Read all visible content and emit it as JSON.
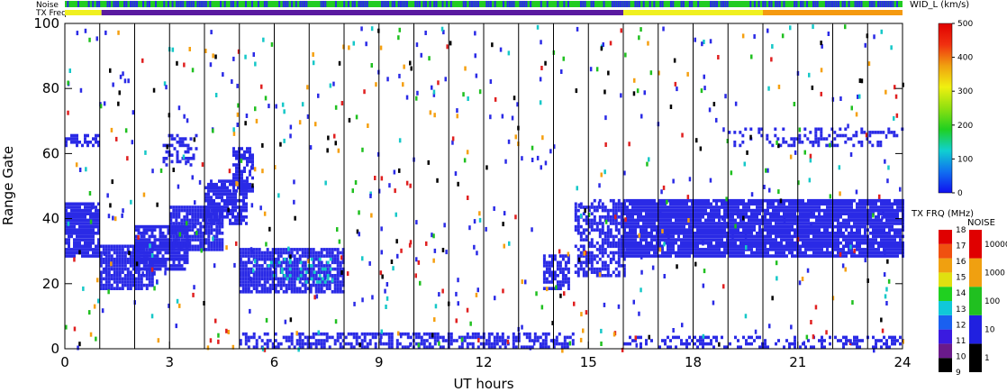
{
  "chart_data": {
    "type": "heatmap",
    "title": "",
    "xlabel": "UT hours",
    "ylabel": "Range Gate",
    "xlim": [
      0,
      24
    ],
    "ylim": [
      0,
      100
    ],
    "x_ticks": [
      0,
      3,
      6,
      9,
      12,
      15,
      18,
      21,
      24
    ],
    "x_tick_labels": [
      "0",
      "3",
      "6",
      "9",
      "12",
      "15",
      "18",
      "21",
      "24"
    ],
    "y_ticks": [
      0,
      20,
      40,
      60,
      80,
      100
    ],
    "y_tick_labels": [
      "0",
      "20",
      "40",
      "60",
      "80",
      "100"
    ],
    "hour_gridlines": [
      1,
      2,
      3,
      4,
      5,
      6,
      7,
      8,
      9,
      10,
      11,
      12,
      13,
      14,
      15,
      16,
      17,
      18,
      19,
      20,
      21,
      22,
      23
    ],
    "top_strips": {
      "noise_label": "Noise",
      "txfreq_label": "TX Freq",
      "noise_segments": [
        {
          "from": 0,
          "to": 24,
          "color": "#22cc22"
        }
      ],
      "txfreq_segments": [
        {
          "from": 0,
          "to": 1.05,
          "color": "#f0f020"
        },
        {
          "from": 1.05,
          "to": 16.0,
          "color": "#5a1aa0"
        },
        {
          "from": 16.0,
          "to": 20.0,
          "color": "#f0f020"
        },
        {
          "from": 20.0,
          "to": 24.0,
          "color": "#f59a10"
        }
      ]
    },
    "regions": [
      {
        "t0": 0.0,
        "t1": 1.0,
        "r0": 28,
        "r1": 45,
        "color": "#2a2ae6",
        "density": 0.9
      },
      {
        "t0": 0.0,
        "t1": 1.0,
        "r0": 62,
        "r1": 66,
        "color": "#2a2ae6",
        "density": 0.6
      },
      {
        "t0": 1.0,
        "t1": 2.5,
        "r0": 18,
        "r1": 32,
        "color": "#2a2ae6",
        "density": 0.85
      },
      {
        "t0": 2.0,
        "t1": 3.5,
        "r0": 24,
        "r1": 38,
        "color": "#2a2ae6",
        "density": 0.85
      },
      {
        "t0": 3.0,
        "t1": 4.5,
        "r0": 30,
        "r1": 44,
        "color": "#2a2ae6",
        "density": 0.85
      },
      {
        "t0": 4.0,
        "t1": 5.2,
        "r0": 38,
        "r1": 52,
        "color": "#2a2ae6",
        "density": 0.8
      },
      {
        "t0": 4.8,
        "t1": 5.4,
        "r0": 48,
        "r1": 62,
        "color": "#2a2ae6",
        "density": 0.7
      },
      {
        "t0": 2.8,
        "t1": 3.8,
        "r0": 56,
        "r1": 66,
        "color": "#2a2ae6",
        "density": 0.4
      },
      {
        "t0": 5.0,
        "t1": 8.0,
        "r0": 17,
        "r1": 31,
        "color": "#2a2ae6",
        "density": 0.85
      },
      {
        "t0": 5.8,
        "t1": 7.6,
        "r0": 20,
        "r1": 28,
        "color": "#16c8c8",
        "density": 0.25
      },
      {
        "t0": 5.0,
        "t1": 14.6,
        "r0": 0,
        "r1": 5,
        "color": "#2a2ae6",
        "density": 0.55
      },
      {
        "t0": 13.7,
        "t1": 14.4,
        "r0": 18,
        "r1": 29,
        "color": "#2a2ae6",
        "density": 0.7
      },
      {
        "t0": 14.6,
        "t1": 16.0,
        "r0": 22,
        "r1": 46,
        "color": "#2a2ae6",
        "density": 0.6
      },
      {
        "t0": 16.0,
        "t1": 24.0,
        "r0": 28,
        "r1": 46,
        "color": "#2a2ae6",
        "density": 0.92
      },
      {
        "t0": 19.0,
        "t1": 24.0,
        "r0": 62,
        "r1": 68,
        "color": "#2a2ae6",
        "density": 0.25
      },
      {
        "t0": 16.0,
        "t1": 24.0,
        "r0": 0,
        "r1": 4,
        "color": "#2a2ae6",
        "density": 0.35
      }
    ],
    "scatter_colors": [
      "#2a2ae6",
      "#2a2ae6",
      "#2a2ae6",
      "#e02020",
      "#16c8c8",
      "#20c020",
      "#000000",
      "#f5a010"
    ],
    "colorbars": {
      "width": {
        "title": "WID_L (km/s)",
        "ticks": [
          0,
          100,
          200,
          300,
          400,
          500
        ],
        "tick_labels": [
          "0",
          "100",
          "200",
          "300",
          "400",
          "500"
        ],
        "range": [
          0,
          500
        ],
        "stops": [
          "#1010f0",
          "#1070f0",
          "#10d0d0",
          "#20d020",
          "#90e010",
          "#f0f010",
          "#f0a010",
          "#f03010",
          "#e00000"
        ]
      },
      "txfreq": {
        "title": "TX FRQ (MHz)",
        "tick_labels": [
          "9",
          "10",
          "11",
          "12",
          "13",
          "14",
          "15",
          "16",
          "17",
          "18"
        ],
        "colors": [
          "#000000",
          "#6a1a8a",
          "#3a1ae0",
          "#1a60f0",
          "#10c8d8",
          "#20d020",
          "#e0e010",
          "#f0a010",
          "#f05010",
          "#e00000"
        ]
      },
      "noise": {
        "title": "NOISE",
        "tick_labels": [
          "1",
          "10",
          "100",
          "1000",
          "10000"
        ],
        "colors": [
          "#000000",
          "#2020e0",
          "#20c020",
          "#f0a010",
          "#e00000"
        ]
      }
    }
  }
}
